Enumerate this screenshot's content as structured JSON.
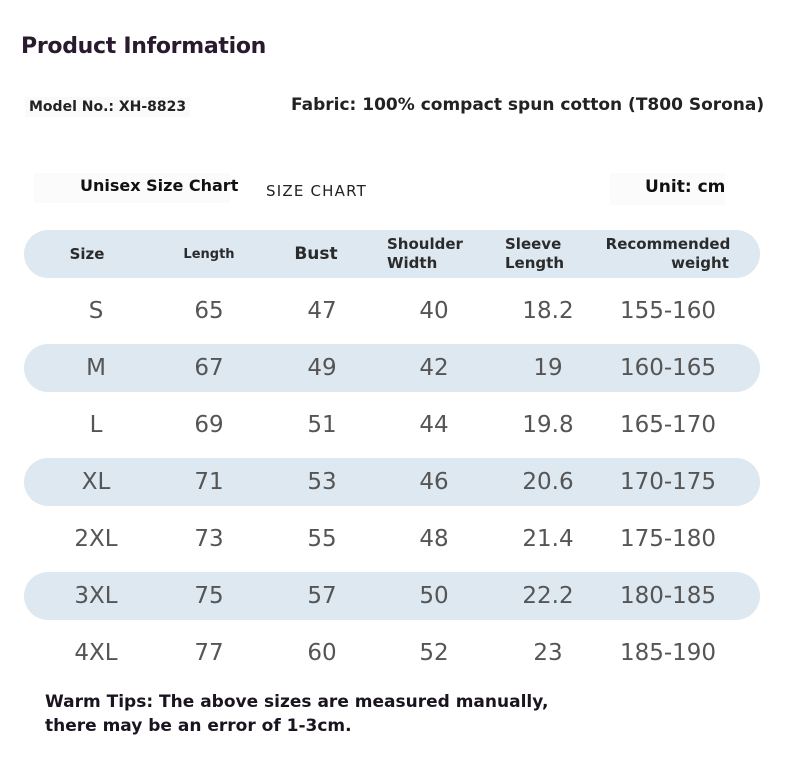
{
  "title": "Product Information",
  "model": "Model No.: XH-8823",
  "fabric": "Fabric: 100% compact spun cotton (T800 Sorona)",
  "chart_title": "Unisex Size Chart",
  "chart_caption": "SIZE CHART",
  "unit": "Unit: cm",
  "headers": {
    "size": "Size",
    "length": "Length",
    "bust": "Bust",
    "shoulder": "Shoulder Width",
    "sleeve": "Sleeve Length",
    "recommended_line1": "Recommended",
    "recommended_line2": "weight"
  },
  "rows": [
    {
      "size": "S",
      "length": "65",
      "bust": "47",
      "shoulder": "40",
      "sleeve": "18.2",
      "weight": "155-160"
    },
    {
      "size": "M",
      "length": "67",
      "bust": "49",
      "shoulder": "42",
      "sleeve": "19",
      "weight": "160-165"
    },
    {
      "size": "L",
      "length": "69",
      "bust": "51",
      "shoulder": "44",
      "sleeve": "19.8",
      "weight": "165-170"
    },
    {
      "size": "XL",
      "length": "71",
      "bust": "53",
      "shoulder": "46",
      "sleeve": "20.6",
      "weight": "170-175"
    },
    {
      "size": "2XL",
      "length": "73",
      "bust": "55",
      "shoulder": "48",
      "sleeve": "21.4",
      "weight": "175-180"
    },
    {
      "size": "3XL",
      "length": "75",
      "bust": "57",
      "shoulder": "50",
      "sleeve": "22.2",
      "weight": "180-185"
    },
    {
      "size": "4XL",
      "length": "77",
      "bust": "60",
      "shoulder": "52",
      "sleeve": "23",
      "weight": "185-190"
    }
  ],
  "tips": {
    "line1": "Warm Tips: The above sizes are measured manually,",
    "line2": "there may be an error of 1-3cm."
  },
  "colors": {
    "band": "#dde8f1",
    "title": "#2a1a2e"
  }
}
